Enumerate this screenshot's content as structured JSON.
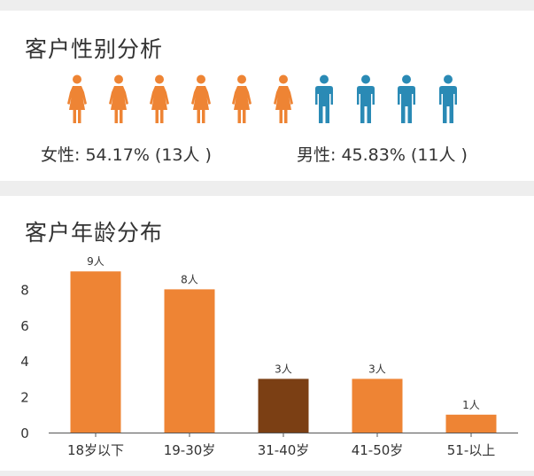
{
  "gender": {
    "title": "客户性别分析",
    "female_label": "女性: 54.17% (13人 )",
    "male_label": "男性: 45.83% (11人 )",
    "female_icon_count": 6,
    "male_icon_count": 4,
    "female_color": "#EE8434",
    "male_color": "#2A8AB5"
  },
  "age": {
    "title": "客户年龄分布"
  },
  "chart_data": {
    "type": "bar",
    "categories": [
      "18岁以下",
      "19-30岁",
      "31-40岁",
      "41-50岁",
      "51-以上"
    ],
    "values": [
      9,
      8,
      3,
      3,
      1
    ],
    "data_labels": [
      "9人",
      "8人",
      "3人",
      "3人",
      "1人"
    ],
    "y_ticks": [
      0,
      2,
      4,
      6,
      8
    ],
    "ylim": [
      0,
      10
    ],
    "bar_colors": [
      "#EE8434",
      "#EE8434",
      "#7B3F14",
      "#EE8434",
      "#EE8434"
    ],
    "grid": false
  }
}
